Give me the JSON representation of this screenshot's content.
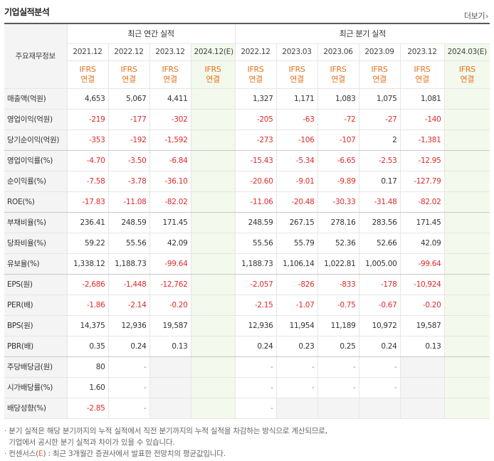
{
  "header": {
    "title": "기업실적분석",
    "more_label": "더보기"
  },
  "table": {
    "corner_label": "주요재무정보",
    "annual_group": "최근 연간 실적",
    "quarter_group": "최근 분기 실적",
    "annual_periods": [
      "2021.12",
      "2022.12",
      "2023.12",
      "2024.12(E)"
    ],
    "quarter_periods": [
      "2022.12",
      "2023.03",
      "2023.06",
      "2023.09",
      "2023.12",
      "2024.03(E)"
    ],
    "ifrs_top": "IFRS",
    "ifrs_bottom": "연결",
    "rows": [
      {
        "label": "매출액(억원)",
        "annual": [
          "4,653",
          "5,067",
          "4,411",
          ""
        ],
        "quarter": [
          "1,327",
          "1,171",
          "1,083",
          "1,075",
          "1,081",
          ""
        ]
      },
      {
        "label": "영업이익(억원)",
        "annual": [
          "-219",
          "-177",
          "-302",
          ""
        ],
        "quarter": [
          "-205",
          "-63",
          "-72",
          "-27",
          "-140",
          ""
        ]
      },
      {
        "label": "당기순이익(억원)",
        "annual": [
          "-353",
          "-192",
          "-1,592",
          ""
        ],
        "quarter": [
          "-273",
          "-106",
          "-107",
          "2",
          "-1,381",
          ""
        ]
      },
      {
        "label": "영업이익률(%)",
        "annual": [
          "-4.70",
          "-3.50",
          "-6.84",
          ""
        ],
        "quarter": [
          "-15.43",
          "-5.34",
          "-6.65",
          "-2.53",
          "-12.95",
          ""
        ]
      },
      {
        "label": "순이익률(%)",
        "annual": [
          "-7.58",
          "-3.78",
          "-36.10",
          ""
        ],
        "quarter": [
          "-20.60",
          "-9.01",
          "-9.89",
          "0.17",
          "-127.79",
          ""
        ]
      },
      {
        "label": "ROE(%)",
        "annual": [
          "-17.83",
          "-11.08",
          "-82.02",
          ""
        ],
        "quarter": [
          "-11.06",
          "-20.48",
          "-30.33",
          "-31.48",
          "-82.02",
          ""
        ]
      },
      {
        "label": "부채비율(%)",
        "annual": [
          "236.41",
          "248.59",
          "171.45",
          ""
        ],
        "quarter": [
          "248.59",
          "267.15",
          "278.16",
          "283.56",
          "171.45",
          ""
        ]
      },
      {
        "label": "당좌비율(%)",
        "annual": [
          "59.22",
          "55.56",
          "42.09",
          ""
        ],
        "quarter": [
          "55.56",
          "55.79",
          "52.36",
          "52.66",
          "42.09",
          ""
        ]
      },
      {
        "label": "유보율(%)",
        "annual": [
          "1,338.12",
          "1,188.73",
          "-99.64",
          ""
        ],
        "quarter": [
          "1,188.73",
          "1,106.14",
          "1,022.81",
          "1,005.00",
          "-99.64",
          ""
        ]
      },
      {
        "label": "EPS(원)",
        "annual": [
          "-2,686",
          "-1,448",
          "-12,762",
          ""
        ],
        "quarter": [
          "-2,057",
          "-826",
          "-833",
          "-178",
          "-10,924",
          ""
        ]
      },
      {
        "label": "PER(배)",
        "annual": [
          "-1.86",
          "-2.14",
          "-0.20",
          ""
        ],
        "quarter": [
          "-2.15",
          "-1.07",
          "-0.75",
          "-0.67",
          "-0.20",
          ""
        ]
      },
      {
        "label": "BPS(원)",
        "annual": [
          "14,375",
          "12,936",
          "19,587",
          ""
        ],
        "quarter": [
          "12,936",
          "11,954",
          "11,189",
          "10,972",
          "19,587",
          ""
        ]
      },
      {
        "label": "PBR(배)",
        "annual": [
          "0.35",
          "0.24",
          "0.13",
          ""
        ],
        "quarter": [
          "0.24",
          "0.23",
          "0.25",
          "0.24",
          "0.13",
          ""
        ]
      },
      {
        "label": "주당배당금(원)",
        "annual": [
          "80",
          "-",
          null,
          ""
        ],
        "quarter": [
          "-",
          "-",
          "-",
          "-",
          null,
          ""
        ]
      },
      {
        "label": "시가배당률(%)",
        "annual": [
          "1.60",
          "-",
          null,
          ""
        ],
        "quarter": [
          "-",
          "-",
          "-",
          "-",
          null,
          ""
        ]
      },
      {
        "label": "배당성향(%)",
        "annual": [
          "-2.85",
          "-",
          null,
          ""
        ],
        "quarter": [
          "-",
          null,
          null,
          null,
          null,
          ""
        ]
      }
    ]
  },
  "notes": {
    "line1": "· 분기 실적은 해당 분기까지의 누적 실적에서 직전 분기까지의 누적 실적을 차감하는 방식으로 계산되므로,",
    "line2": "  기업에서 공시한 분기 실적과 차이가 있을 수 있습니다.",
    "line3_prefix": "· 컨센서스(",
    "line3_mark": "E",
    "line3_suffix": ") : 최근 3개월간 증권사에서 발표한 전망치의 평균값입니다."
  }
}
